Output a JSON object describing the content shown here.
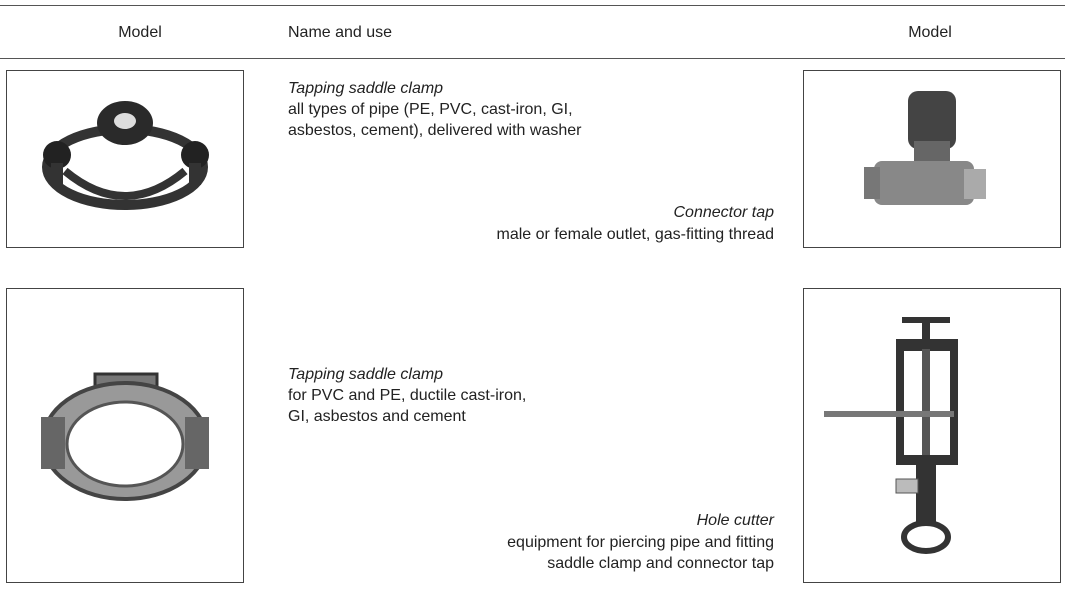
{
  "table": {
    "headers": [
      "Model",
      "Name and use",
      "Model"
    ],
    "items": [
      {
        "name": "Tapping saddle clamp",
        "use": [
          "all types of pipe (PE, PVC, cast-iron, GI,",
          "asbestos, cement), delivered with washer"
        ]
      },
      {
        "name": "Connector tap",
        "use": [
          "male or female outlet, gas-fitting thread"
        ]
      },
      {
        "name": "Tapping saddle clamp",
        "use": [
          "for PVC and PE, ductile cast-iron,",
          "GI, asbestos and cement"
        ]
      },
      {
        "name": "Hole cutter",
        "use": [
          "equipment for piercing pipe and fitting",
          "saddle clamp and connector tap"
        ]
      }
    ]
  }
}
